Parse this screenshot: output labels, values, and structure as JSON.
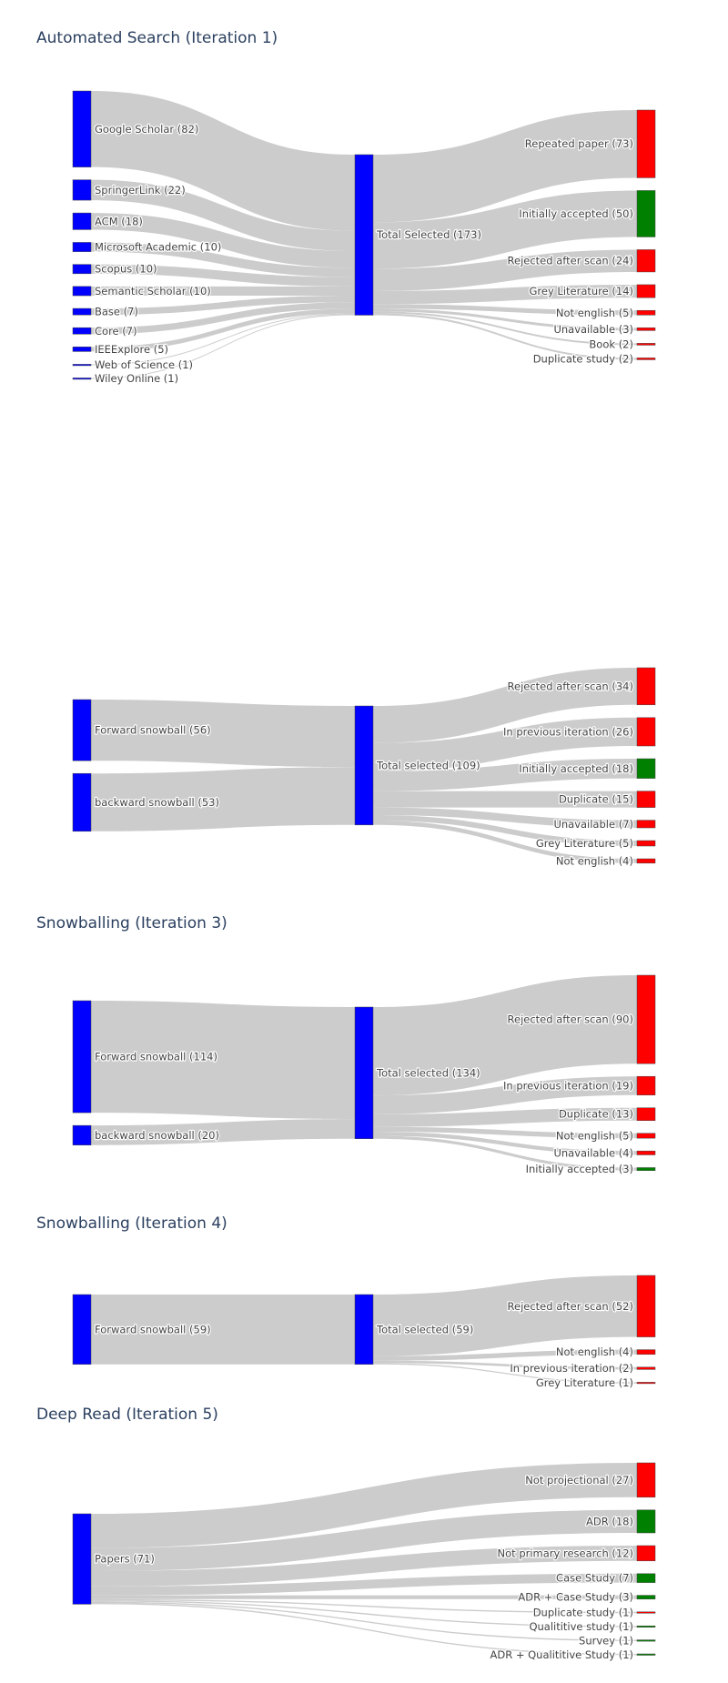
{
  "colors": {
    "blue": "#0000ff",
    "green": "#008000",
    "red": "#ff0000",
    "link": "#cccccc"
  },
  "chart_data": [
    {
      "type": "sankey",
      "title": "Automated Search (Iteration 1)",
      "columns": [
        [
          {
            "id": "gs",
            "label": "Google Scholar (82)",
            "value": 82,
            "color": "blue"
          },
          {
            "id": "sl",
            "label": "SpringerLink (22)",
            "value": 22,
            "color": "blue"
          },
          {
            "id": "acm",
            "label": "ACM (18)",
            "value": 18,
            "color": "blue"
          },
          {
            "id": "ma",
            "label": "Microsoft Academic (10)",
            "value": 10,
            "color": "blue"
          },
          {
            "id": "sc",
            "label": "Scopus (10)",
            "value": 10,
            "color": "blue"
          },
          {
            "id": "ss",
            "label": "Semantic Scholar (10)",
            "value": 10,
            "color": "blue"
          },
          {
            "id": "base",
            "label": "Base (7)",
            "value": 7,
            "color": "blue"
          },
          {
            "id": "core",
            "label": "Core (7)",
            "value": 7,
            "color": "blue"
          },
          {
            "id": "ieee",
            "label": "IEEExplore (5)",
            "value": 5,
            "color": "blue"
          },
          {
            "id": "wos",
            "label": "Web of Science (1)",
            "value": 1,
            "color": "blue"
          },
          {
            "id": "wo",
            "label": "Wiley Online (1)",
            "value": 1,
            "color": "blue"
          }
        ],
        [
          {
            "id": "ts",
            "label": "Total Selected (173)",
            "value": 173,
            "color": "blue"
          }
        ],
        [
          {
            "id": "rp",
            "label": "Repeated paper (73)",
            "value": 73,
            "color": "red"
          },
          {
            "id": "ia",
            "label": "Initially accepted (50)",
            "value": 50,
            "color": "green"
          },
          {
            "id": "ras",
            "label": "Rejected after scan (24)",
            "value": 24,
            "color": "red"
          },
          {
            "id": "gl",
            "label": "Grey Literature (14)",
            "value": 14,
            "color": "red"
          },
          {
            "id": "ne",
            "label": "Not english (5)",
            "value": 5,
            "color": "red"
          },
          {
            "id": "un",
            "label": "Unavailable (3)",
            "value": 3,
            "color": "red"
          },
          {
            "id": "bk",
            "label": "Book (2)",
            "value": 2,
            "color": "red"
          },
          {
            "id": "ds",
            "label": "Duplicate study (2)",
            "value": 2,
            "color": "red"
          }
        ]
      ]
    },
    {
      "type": "sankey",
      "title": "",
      "columns": [
        [
          {
            "id": "fs",
            "label": "Forward snowball (56)",
            "value": 56,
            "color": "blue"
          },
          {
            "id": "bs",
            "label": "backward snowball (53)",
            "value": 53,
            "color": "blue"
          }
        ],
        [
          {
            "id": "ts",
            "label": "Total selected (109)",
            "value": 109,
            "color": "blue"
          }
        ],
        [
          {
            "id": "ras",
            "label": "Rejected after scan (34)",
            "value": 34,
            "color": "red"
          },
          {
            "id": "ipi",
            "label": "In previous iteration (26)",
            "value": 26,
            "color": "red"
          },
          {
            "id": "ia",
            "label": "Initially accepted (18)",
            "value": 18,
            "color": "green"
          },
          {
            "id": "dup",
            "label": "Duplicate (15)",
            "value": 15,
            "color": "red"
          },
          {
            "id": "un",
            "label": "Unavailable (7)",
            "value": 7,
            "color": "red"
          },
          {
            "id": "gl",
            "label": "Grey Literature (5)",
            "value": 5,
            "color": "red"
          },
          {
            "id": "ne",
            "label": "Not english (4)",
            "value": 4,
            "color": "red"
          }
        ]
      ]
    },
    {
      "type": "sankey",
      "title": "Snowballing (Iteration 3)",
      "columns": [
        [
          {
            "id": "fs",
            "label": "Forward snowball (114)",
            "value": 114,
            "color": "blue"
          },
          {
            "id": "bs",
            "label": "backward snowball (20)",
            "value": 20,
            "color": "blue"
          }
        ],
        [
          {
            "id": "ts",
            "label": "Total selected (134)",
            "value": 134,
            "color": "blue"
          }
        ],
        [
          {
            "id": "ras",
            "label": "Rejected after scan (90)",
            "value": 90,
            "color": "red"
          },
          {
            "id": "ipi",
            "label": "In previous iteration (19)",
            "value": 19,
            "color": "red"
          },
          {
            "id": "dup",
            "label": "Duplicate (13)",
            "value": 13,
            "color": "red"
          },
          {
            "id": "ne",
            "label": "Not english (5)",
            "value": 5,
            "color": "red"
          },
          {
            "id": "un",
            "label": "Unavailable (4)",
            "value": 4,
            "color": "red"
          },
          {
            "id": "ia",
            "label": "Initially accepted (3)",
            "value": 3,
            "color": "green"
          }
        ]
      ]
    },
    {
      "type": "sankey",
      "title": "Snowballing (Iteration 4)",
      "columns": [
        [
          {
            "id": "fs",
            "label": "Forward snowball (59)",
            "value": 59,
            "color": "blue"
          }
        ],
        [
          {
            "id": "ts",
            "label": "Total selected (59)",
            "value": 59,
            "color": "blue"
          }
        ],
        [
          {
            "id": "ras",
            "label": "Rejected after scan (52)",
            "value": 52,
            "color": "red"
          },
          {
            "id": "ne",
            "label": "Not english (4)",
            "value": 4,
            "color": "red"
          },
          {
            "id": "ipi",
            "label": "In previous iteration (2)",
            "value": 2,
            "color": "red"
          },
          {
            "id": "gl",
            "label": "Grey Literature (1)",
            "value": 1,
            "color": "red"
          }
        ]
      ]
    },
    {
      "type": "sankey",
      "title": "Deep Read (Iteration 5)",
      "columns": [
        [
          {
            "id": "pp",
            "label": "Papers (71)",
            "value": 71,
            "color": "blue"
          }
        ],
        [
          {
            "id": "np",
            "label": "Not projectional (27)",
            "value": 27,
            "color": "red"
          },
          {
            "id": "adr",
            "label": "ADR (18)",
            "value": 18,
            "color": "green"
          },
          {
            "id": "npr",
            "label": "Not primary research (12)",
            "value": 12,
            "color": "red"
          },
          {
            "id": "cs",
            "label": "Case Study (7)",
            "value": 7,
            "color": "green"
          },
          {
            "id": "adrcs",
            "label": "ADR + Case Study (3)",
            "value": 3,
            "color": "green"
          },
          {
            "id": "dup",
            "label": "Duplicate study (1)",
            "value": 1,
            "color": "red"
          },
          {
            "id": "qs",
            "label": "Qualititive study (1)",
            "value": 1,
            "color": "green"
          },
          {
            "id": "sv",
            "label": "Survey (1)",
            "value": 1,
            "color": "green"
          },
          {
            "id": "adrqs",
            "label": "ADR + Qualititive Study (1)",
            "value": 1,
            "color": "green"
          }
        ]
      ]
    }
  ]
}
